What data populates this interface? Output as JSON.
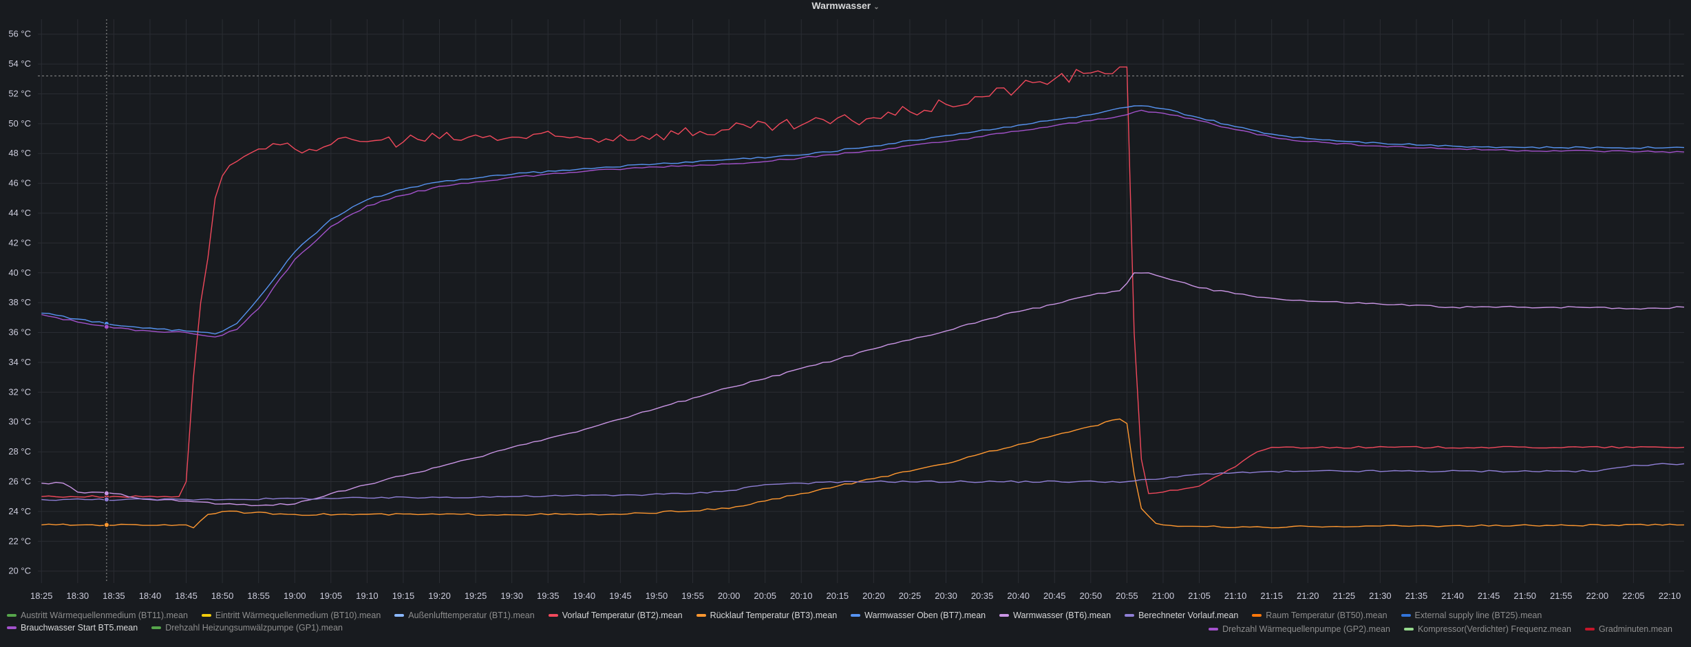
{
  "panel": {
    "title": "Warmwasser",
    "chevron": "chevron-down-icon"
  },
  "chart_data": {
    "type": "line",
    "title": "Warmwasser",
    "xlabel": "",
    "ylabel": "",
    "ylim": [
      19.2,
      57
    ],
    "y_ticks": [
      "20 °C",
      "22 °C",
      "24 °C",
      "26 °C",
      "28 °C",
      "30 °C",
      "32 °C",
      "34 °C",
      "36 °C",
      "38 °C",
      "40 °C",
      "42 °C",
      "44 °C",
      "46 °C",
      "48 °C",
      "50 °C",
      "52 °C",
      "54 °C",
      "56 °C"
    ],
    "y_tick_values": [
      20,
      22,
      24,
      26,
      28,
      30,
      32,
      34,
      36,
      38,
      40,
      42,
      44,
      46,
      48,
      50,
      52,
      54,
      56
    ],
    "x_ticks": [
      "18:25",
      "18:30",
      "18:35",
      "18:40",
      "18:45",
      "18:50",
      "18:55",
      "19:00",
      "19:05",
      "19:10",
      "19:15",
      "19:20",
      "19:25",
      "19:30",
      "19:35",
      "19:40",
      "19:45",
      "19:50",
      "19:55",
      "20:00",
      "20:05",
      "20:10",
      "20:15",
      "20:20",
      "20:25",
      "20:30",
      "20:35",
      "20:40",
      "20:45",
      "20:50",
      "20:55",
      "21:00",
      "21:05",
      "21:10",
      "21:15",
      "21:20",
      "21:25",
      "21:30",
      "21:35",
      "21:40",
      "21:45",
      "21:50",
      "21:55",
      "22:00",
      "22:05",
      "22:10"
    ],
    "x_range": [
      "18:25",
      "22:12"
    ],
    "threshold": {
      "value": 53.2,
      "style": "dashed"
    },
    "crosshair": "18:34",
    "grid": true,
    "legend_position": "bottom",
    "series": [
      {
        "name": "Austritt Wärmequellenmedium (BT11).mean",
        "color": "#56a64b",
        "visible": false,
        "points": []
      },
      {
        "name": "Eintritt Wärmequellenmedium (BT10).mean",
        "color": "#f2cc0c",
        "visible": false,
        "points": []
      },
      {
        "name": "Außenlufttemperatur (BT1).mean",
        "color": "#8ab8ff",
        "visible": false,
        "points": []
      },
      {
        "name": "Vorlauf Temperatur (BT2).mean",
        "color": "#f2495c",
        "visible": true,
        "points": [
          [
            "18:25",
            25.0
          ],
          [
            "18:44",
            25.0
          ],
          [
            "18:45",
            26.0
          ],
          [
            "18:46",
            33.0
          ],
          [
            "18:47",
            38.0
          ],
          [
            "18:48",
            41.0
          ],
          [
            "18:49",
            45.0
          ],
          [
            "18:50",
            46.5
          ],
          [
            "18:51",
            47.2
          ],
          [
            "18:53",
            47.8
          ],
          [
            "18:55",
            48.3
          ],
          [
            "19:00",
            48.3
          ],
          [
            "19:05",
            48.6
          ],
          [
            "19:10",
            48.8
          ],
          [
            "19:20",
            49.0
          ],
          [
            "19:30",
            49.1
          ],
          [
            "19:40",
            49.0
          ],
          [
            "19:50",
            49.3
          ],
          [
            "20:00",
            49.6
          ],
          [
            "20:10",
            49.9
          ],
          [
            "20:20",
            50.4
          ],
          [
            "20:25",
            50.8
          ],
          [
            "20:30",
            51.3
          ],
          [
            "20:35",
            51.8
          ],
          [
            "20:40",
            52.4
          ],
          [
            "20:45",
            53.0
          ],
          [
            "20:50",
            53.4
          ],
          [
            "20:54",
            53.8
          ],
          [
            "20:55",
            53.8
          ],
          [
            "20:56",
            36.0
          ],
          [
            "20:57",
            27.5
          ],
          [
            "20:58",
            25.2
          ],
          [
            "21:00",
            25.3
          ],
          [
            "21:05",
            25.7
          ],
          [
            "21:10",
            27.0
          ],
          [
            "21:13",
            28.0
          ],
          [
            "21:15",
            28.3
          ],
          [
            "22:12",
            28.3
          ]
        ]
      },
      {
        "name": "Rücklauf Temperatur (BT3).mean",
        "color": "#ff9830",
        "visible": true,
        "points": [
          [
            "18:25",
            23.1
          ],
          [
            "18:45",
            23.1
          ],
          [
            "18:46",
            22.9
          ],
          [
            "18:48",
            23.8
          ],
          [
            "18:50",
            24.0
          ],
          [
            "19:00",
            23.8
          ],
          [
            "19:45",
            23.8
          ],
          [
            "20:00",
            24.2
          ],
          [
            "20:05",
            24.7
          ],
          [
            "20:10",
            25.2
          ],
          [
            "20:15",
            25.7
          ],
          [
            "20:20",
            26.2
          ],
          [
            "20:25",
            26.7
          ],
          [
            "20:30",
            27.2
          ],
          [
            "20:35",
            27.9
          ],
          [
            "20:40",
            28.5
          ],
          [
            "20:45",
            29.1
          ],
          [
            "20:50",
            29.7
          ],
          [
            "20:54",
            30.2
          ],
          [
            "20:55",
            29.9
          ],
          [
            "20:56",
            26.5
          ],
          [
            "20:57",
            24.2
          ],
          [
            "20:59",
            23.2
          ],
          [
            "21:00",
            23.1
          ],
          [
            "21:05",
            23.0
          ],
          [
            "21:15",
            22.9
          ],
          [
            "21:20",
            23.0
          ],
          [
            "22:12",
            23.1
          ]
        ]
      },
      {
        "name": "Warmwasser Oben (BT7).mean",
        "color": "#5794f2",
        "visible": true,
        "points": [
          [
            "18:25",
            37.3
          ],
          [
            "18:30",
            36.9
          ],
          [
            "18:35",
            36.5
          ],
          [
            "18:40",
            36.3
          ],
          [
            "18:45",
            36.1
          ],
          [
            "18:49",
            35.9
          ],
          [
            "18:52",
            36.6
          ],
          [
            "18:55",
            38.3
          ],
          [
            "19:00",
            41.4
          ],
          [
            "19:05",
            43.6
          ],
          [
            "19:10",
            44.9
          ],
          [
            "19:15",
            45.6
          ],
          [
            "19:20",
            46.1
          ],
          [
            "19:30",
            46.6
          ],
          [
            "19:40",
            47.0
          ],
          [
            "19:50",
            47.3
          ],
          [
            "20:00",
            47.6
          ],
          [
            "20:10",
            47.9
          ],
          [
            "20:20",
            48.5
          ],
          [
            "20:30",
            49.2
          ],
          [
            "20:40",
            49.9
          ],
          [
            "20:50",
            50.6
          ],
          [
            "20:55",
            51.1
          ],
          [
            "20:57",
            51.2
          ],
          [
            "21:00",
            51.0
          ],
          [
            "21:05",
            50.4
          ],
          [
            "21:10",
            49.8
          ],
          [
            "21:15",
            49.3
          ],
          [
            "21:20",
            49.0
          ],
          [
            "21:30",
            48.7
          ],
          [
            "21:40",
            48.5
          ],
          [
            "21:50",
            48.4
          ],
          [
            "22:12",
            48.4
          ]
        ]
      },
      {
        "name": "Warmwasser (BT6).mean",
        "color": "#ca95e5",
        "visible": true,
        "points": [
          [
            "18:25",
            25.9
          ],
          [
            "18:28",
            25.9
          ],
          [
            "18:30",
            25.3
          ],
          [
            "18:35",
            25.2
          ],
          [
            "18:40",
            24.8
          ],
          [
            "18:45",
            24.7
          ],
          [
            "18:50",
            24.5
          ],
          [
            "18:55",
            24.4
          ],
          [
            "19:00",
            24.5
          ],
          [
            "19:05",
            25.2
          ],
          [
            "19:10",
            25.8
          ],
          [
            "19:15",
            26.4
          ],
          [
            "19:20",
            27.0
          ],
          [
            "19:25",
            27.6
          ],
          [
            "19:30",
            28.3
          ],
          [
            "19:35",
            28.9
          ],
          [
            "19:40",
            29.5
          ],
          [
            "19:45",
            30.2
          ],
          [
            "19:50",
            30.9
          ],
          [
            "19:55",
            31.6
          ],
          [
            "20:00",
            32.3
          ],
          [
            "20:05",
            32.9
          ],
          [
            "20:10",
            33.6
          ],
          [
            "20:15",
            34.2
          ],
          [
            "20:20",
            34.9
          ],
          [
            "20:25",
            35.5
          ],
          [
            "20:30",
            36.1
          ],
          [
            "20:35",
            36.8
          ],
          [
            "20:40",
            37.4
          ],
          [
            "20:45",
            37.9
          ],
          [
            "20:50",
            38.5
          ],
          [
            "20:54",
            38.8
          ],
          [
            "20:55",
            39.3
          ],
          [
            "20:56",
            40.0
          ],
          [
            "20:58",
            40.0
          ],
          [
            "21:00",
            39.7
          ],
          [
            "21:05",
            39.0
          ],
          [
            "21:10",
            38.6
          ],
          [
            "21:15",
            38.3
          ],
          [
            "21:20",
            38.1
          ],
          [
            "21:30",
            37.9
          ],
          [
            "21:40",
            37.7
          ],
          [
            "21:50",
            37.7
          ],
          [
            "22:00",
            37.7
          ],
          [
            "22:05",
            37.6
          ],
          [
            "22:12",
            37.7
          ]
        ]
      },
      {
        "name": "Berechneter Vorlauf.mean",
        "color": "#8f7fd6",
        "visible": true,
        "points": [
          [
            "18:25",
            24.8
          ],
          [
            "18:45",
            24.8
          ],
          [
            "19:10",
            24.9
          ],
          [
            "19:30",
            25.0
          ],
          [
            "19:45",
            25.1
          ],
          [
            "19:55",
            25.2
          ],
          [
            "20:00",
            25.4
          ],
          [
            "20:05",
            25.8
          ],
          [
            "20:10",
            25.9
          ],
          [
            "20:20",
            26.0
          ],
          [
            "20:55",
            26.0
          ],
          [
            "21:00",
            26.2
          ],
          [
            "21:05",
            26.5
          ],
          [
            "21:10",
            26.6
          ],
          [
            "21:20",
            26.7
          ],
          [
            "22:00",
            26.7
          ],
          [
            "22:05",
            27.1
          ],
          [
            "22:12",
            27.2
          ]
        ]
      },
      {
        "name": "Raum Temperatur (BT50).mean",
        "color": "#ff780a",
        "visible": false,
        "points": []
      },
      {
        "name": "External supply line (BT25).mean",
        "color": "#3274d9",
        "visible": false,
        "points": []
      },
      {
        "name": "Brauchwasser Start BT5.mean",
        "color": "#a352cc",
        "visible": true,
        "points": [
          [
            "18:25",
            37.2
          ],
          [
            "18:30",
            36.7
          ],
          [
            "18:35",
            36.3
          ],
          [
            "18:40",
            36.1
          ],
          [
            "18:45",
            36.0
          ],
          [
            "18:49",
            35.7
          ],
          [
            "18:52",
            36.2
          ],
          [
            "18:55",
            37.6
          ],
          [
            "19:00",
            40.9
          ],
          [
            "19:05",
            43.1
          ],
          [
            "19:10",
            44.5
          ],
          [
            "19:15",
            45.2
          ],
          [
            "19:20",
            45.8
          ],
          [
            "19:30",
            46.4
          ],
          [
            "19:40",
            46.8
          ],
          [
            "19:50",
            47.1
          ],
          [
            "20:00",
            47.3
          ],
          [
            "20:10",
            47.7
          ],
          [
            "20:20",
            48.2
          ],
          [
            "20:30",
            48.8
          ],
          [
            "20:40",
            49.5
          ],
          [
            "20:50",
            50.2
          ],
          [
            "20:55",
            50.6
          ],
          [
            "20:57",
            50.9
          ],
          [
            "21:00",
            50.7
          ],
          [
            "21:05",
            50.2
          ],
          [
            "21:10",
            49.6
          ],
          [
            "21:15",
            49.1
          ],
          [
            "21:20",
            48.8
          ],
          [
            "21:30",
            48.5
          ],
          [
            "21:40",
            48.3
          ],
          [
            "21:50",
            48.2
          ],
          [
            "22:12",
            48.1
          ]
        ]
      },
      {
        "name": "Drehzahl Heizungsumwälzpumpe (GP1).mean",
        "color": "#56a64b",
        "visible": false,
        "points": []
      },
      {
        "name": "Drehzahl Wärmequellenpumpe (GP2).mean",
        "color": "#a352cc",
        "visible": false,
        "points": []
      },
      {
        "name": "Kompressor(Verdichter) Frequenz.mean",
        "color": "#96d98d",
        "visible": false,
        "points": []
      },
      {
        "name": "Gradminuten.mean",
        "color": "#c4162a",
        "visible": false,
        "points": []
      }
    ]
  }
}
